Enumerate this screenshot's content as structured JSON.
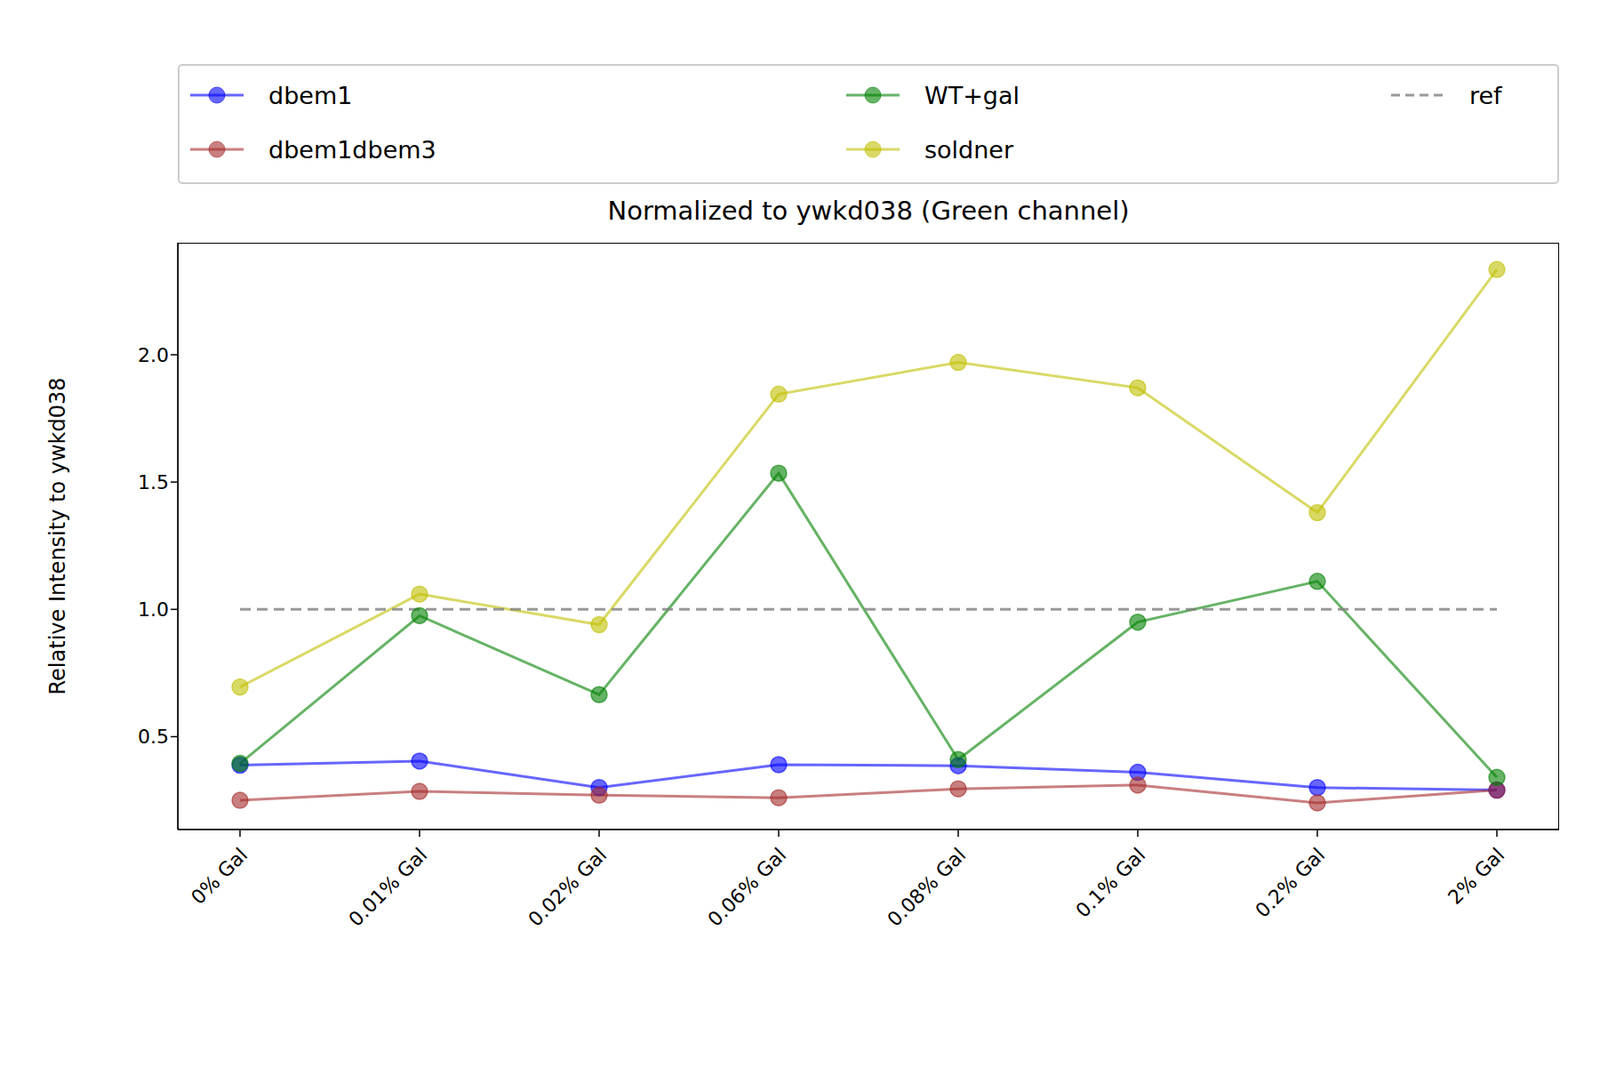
{
  "chart_data": {
    "type": "line",
    "title": "Normalized to ywkd038 (Green channel)",
    "y_label": "Relative Intensity to ywkd038",
    "categories": [
      "0% Gal",
      "0.01% Gal",
      "0.02% Gal",
      "0.06% Gal",
      "0.08% Gal",
      "0.1% Gal",
      "0.2% Gal",
      "2% Gal"
    ],
    "series": [
      {
        "name": "dbem1",
        "color": "#0000ff",
        "marker": "circle",
        "line_style": "solid",
        "values": [
          0.388,
          0.404,
          0.3,
          0.39,
          0.386,
          0.36,
          0.3,
          0.29
        ]
      },
      {
        "name": "dbem1dbem3",
        "color": "#a52a2a",
        "marker": "circle",
        "line_style": "solid",
        "values": [
          0.25,
          0.285,
          0.27,
          0.26,
          0.295,
          0.31,
          0.24,
          0.29
        ]
      },
      {
        "name": "WT+gal",
        "color": "#008000",
        "marker": "circle",
        "line_style": "solid",
        "values": [
          0.395,
          0.975,
          0.665,
          1.535,
          0.41,
          0.95,
          1.11,
          0.34
        ]
      },
      {
        "name": "soldner",
        "color": "#bfbf00",
        "marker": "circle",
        "line_style": "solid",
        "values": [
          0.695,
          1.06,
          0.94,
          1.845,
          1.97,
          1.87,
          1.38,
          2.335
        ]
      },
      {
        "name": "ref",
        "color": "#808080",
        "marker": "none",
        "line_style": "dashed",
        "values": [
          1,
          1,
          1,
          1,
          1,
          1,
          1,
          1
        ]
      }
    ],
    "ylim": [
      0.135,
      2.44
    ],
    "yticks": [
      0.5,
      {
        "value": 1,
        "label": "1.0"
      },
      1.5,
      {
        "value": 2,
        "label": "2.0"
      }
    ],
    "grid": false,
    "legend": "top"
  }
}
